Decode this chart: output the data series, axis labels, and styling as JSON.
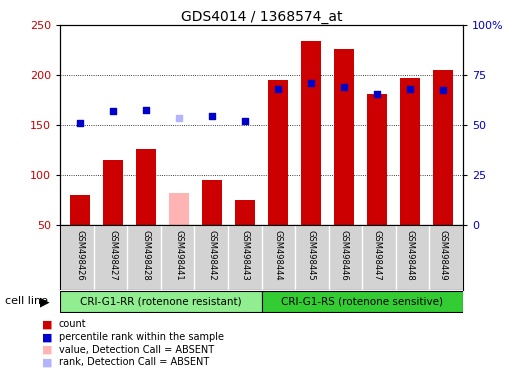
{
  "title": "GDS4014 / 1368574_at",
  "samples": [
    "GSM498426",
    "GSM498427",
    "GSM498428",
    "GSM498441",
    "GSM498442",
    "GSM498443",
    "GSM498444",
    "GSM498445",
    "GSM498446",
    "GSM498447",
    "GSM498448",
    "GSM498449"
  ],
  "counts": [
    80,
    115,
    126,
    82,
    95,
    75,
    195,
    234,
    226,
    181,
    197,
    205
  ],
  "ranks": [
    152,
    164,
    165,
    157,
    159,
    154,
    186,
    192,
    188,
    181,
    186,
    185
  ],
  "absent": [
    false,
    false,
    false,
    true,
    false,
    false,
    false,
    false,
    false,
    false,
    false,
    false
  ],
  "group1_n": 6,
  "group2_n": 6,
  "group1_label": "CRI-G1-RR (rotenone resistant)",
  "group2_label": "CRI-G1-RS (rotenone sensitive)",
  "cell_line_label": "cell line",
  "ylim_left": [
    50,
    250
  ],
  "ylim_right": [
    0,
    100
  ],
  "yticks_left": [
    50,
    100,
    150,
    200,
    250
  ],
  "yticks_right": [
    0,
    25,
    50,
    75,
    100
  ],
  "bar_color_present": "#cc0000",
  "bar_color_absent": "#ffb3b3",
  "dot_color_present": "#0000cc",
  "dot_color_absent": "#b3b3ff",
  "group1_box_color": "#90ee90",
  "group2_box_color": "#33cc33",
  "legend_items": [
    {
      "label": "count",
      "color": "#cc0000"
    },
    {
      "label": "percentile rank within the sample",
      "color": "#0000cc"
    },
    {
      "label": "value, Detection Call = ABSENT",
      "color": "#ffb3b3"
    },
    {
      "label": "rank, Detection Call = ABSENT",
      "color": "#b3b3ff"
    }
  ]
}
